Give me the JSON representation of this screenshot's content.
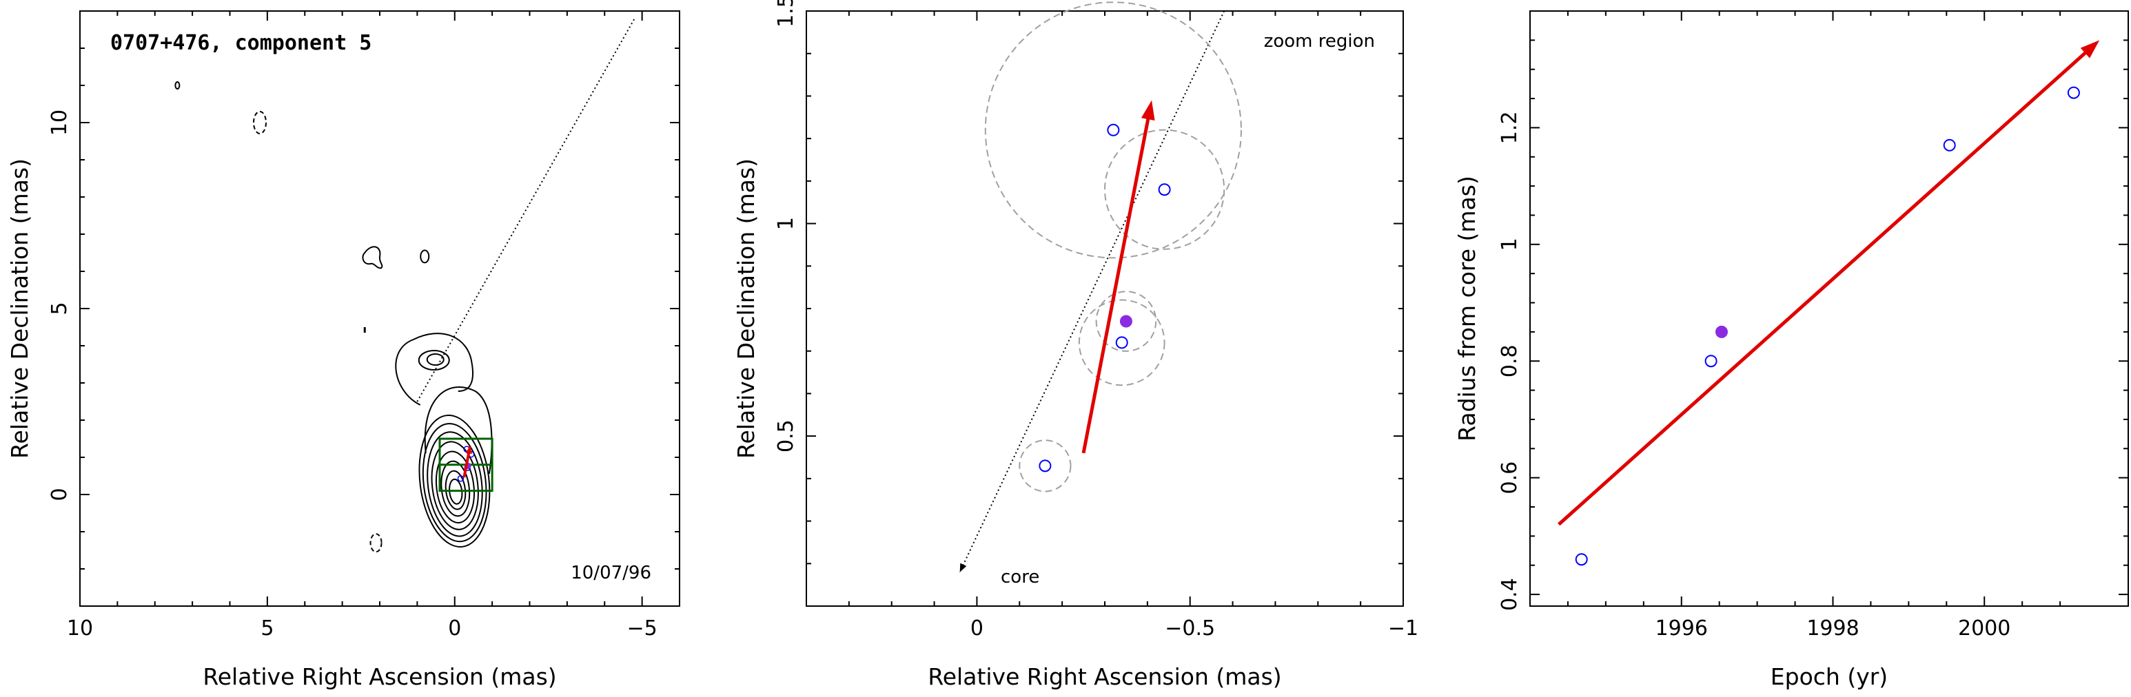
{
  "chart_data": [
    {
      "type": "contour",
      "title": "0707+476, component 5",
      "date_label": "10/07/96",
      "xlabel": "Relative Right Ascension (mas)",
      "ylabel": "Relative Declination (mas)",
      "xlim": [
        10,
        -6
      ],
      "ylim": [
        -3,
        13
      ],
      "xticks": [
        10,
        5,
        0,
        -5
      ],
      "xtick_labels": [
        "10",
        "5",
        "0",
        "−5"
      ],
      "yticks": [
        0,
        5,
        10
      ],
      "ytick_labels": [
        "0",
        "5",
        "10"
      ],
      "core": [
        0,
        0
      ],
      "jet_direction": [
        [
          1.0,
          2.5
        ],
        [
          -4.8,
          12.8
        ]
      ],
      "zoom_region": {
        "x": [
          -1.0,
          0.4
        ],
        "y": [
          0.1,
          1.5
        ]
      },
      "component_positions": [
        {
          "x": -0.16,
          "y": 0.43
        },
        {
          "x": -0.34,
          "y": 0.72
        },
        {
          "x": -0.35,
          "y": 0.77,
          "filled": true
        },
        {
          "x": -0.44,
          "y": 1.08
        },
        {
          "x": -0.32,
          "y": 1.22
        }
      ],
      "motion_arrow": {
        "from": [
          -0.25,
          0.46
        ],
        "to": [
          -0.41,
          1.29
        ]
      },
      "colors": {
        "contours": "#000000",
        "zoom_box": "#006400",
        "arrow": "#e00000"
      }
    },
    {
      "type": "scatter",
      "label": "zoom region",
      "core_label": "core",
      "xlabel": "Relative Right Ascension (mas)",
      "ylabel": "Relative Declination (mas)",
      "xlim": [
        0.4,
        -1.0
      ],
      "ylim": [
        0.1,
        1.5
      ],
      "xticks": [
        0,
        -0.5,
        -1
      ],
      "xtick_labels": [
        "0",
        "−0.5",
        "−1"
      ],
      "yticks": [
        0.5,
        1,
        1.5
      ],
      "ytick_labels": [
        "0.5",
        "1",
        "1.5"
      ],
      "points": [
        {
          "x": -0.16,
          "y": 0.43,
          "r": 0.06,
          "filled": false
        },
        {
          "x": -0.34,
          "y": 0.72,
          "r": 0.1,
          "filled": false
        },
        {
          "x": -0.35,
          "y": 0.77,
          "r": 0.07,
          "filled": true
        },
        {
          "x": -0.44,
          "y": 1.08,
          "r": 0.14,
          "filled": false
        },
        {
          "x": -0.32,
          "y": 1.22,
          "r": 0.3,
          "filled": false
        }
      ],
      "jet_line": [
        [
          -0.58,
          1.5
        ],
        [
          0.04,
          0.18
        ]
      ],
      "motion_arrow": {
        "from": [
          -0.25,
          0.46
        ],
        "to": [
          -0.41,
          1.29
        ]
      },
      "colors": {
        "open_marker": "#0000ff",
        "filled_marker": "#8a2be2",
        "circles": "#a0a0a0",
        "arrow": "#e00000"
      }
    },
    {
      "type": "scatter",
      "xlabel": "Epoch (yr)",
      "ylabel": "Radius from core (mas)",
      "xlim": [
        1994.0,
        2001.9
      ],
      "ylim": [
        0.38,
        1.4
      ],
      "xticks": [
        1996,
        1998,
        2000
      ],
      "xtick_labels": [
        "1996",
        "1998",
        "2000"
      ],
      "yticks": [
        0.4,
        0.6,
        0.8,
        1.0,
        1.2
      ],
      "ytick_labels": [
        "0.4",
        "0.6",
        "0.8",
        "1",
        "1.2"
      ],
      "points": [
        {
          "x": 1994.68,
          "y": 0.46,
          "filled": false
        },
        {
          "x": 1996.39,
          "y": 0.8,
          "filled": false
        },
        {
          "x": 1996.53,
          "y": 0.85,
          "filled": true
        },
        {
          "x": 1999.54,
          "y": 1.17,
          "filled": false
        },
        {
          "x": 2001.18,
          "y": 1.26,
          "filled": false
        }
      ],
      "fit_arrow": {
        "from": [
          1994.38,
          0.52
        ],
        "to": [
          2001.52,
          1.35
        ]
      },
      "colors": {
        "open_marker": "#0000ff",
        "filled_marker": "#8a2be2",
        "arrow": "#e00000"
      }
    }
  ]
}
